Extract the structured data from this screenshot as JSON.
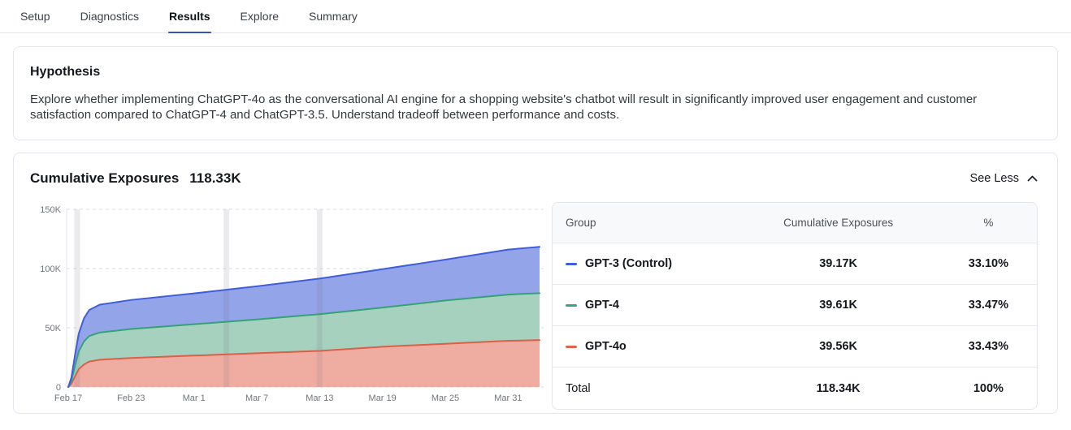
{
  "nav": {
    "tabs": [
      {
        "label": "Setup",
        "active": false
      },
      {
        "label": "Diagnostics",
        "active": false
      },
      {
        "label": "Results",
        "active": true
      },
      {
        "label": "Explore",
        "active": false
      },
      {
        "label": "Summary",
        "active": false
      }
    ]
  },
  "hypothesis": {
    "title": "Hypothesis",
    "body": "Explore whether implementing ChatGPT-4o as the conversational AI engine for a shopping website's chatbot will result in significantly improved user engagement and customer satisfaction compared to ChatGPT-4 and ChatGPT-3.5. Understand tradeoff between performance and costs."
  },
  "exposures": {
    "title": "Cumulative Exposures",
    "total_value": "118.33K",
    "see_less_label": "See Less",
    "table": {
      "columns": [
        "Group",
        "Cumulative Exposures",
        "%"
      ],
      "rows": [
        {
          "group": "GPT-3 (Control)",
          "color": "#3e5ede",
          "exposures": "39.17K",
          "pct": "33.10%"
        },
        {
          "group": "GPT-4",
          "color": "#3ba57e",
          "exposures": "39.61K",
          "pct": "33.47%"
        },
        {
          "group": "GPT-4o",
          "color": "#df6450",
          "exposures": "39.56K",
          "pct": "33.43%"
        }
      ],
      "total": {
        "label": "Total",
        "exposures": "118.34K",
        "pct": "100%"
      }
    }
  },
  "chart_data": {
    "type": "area",
    "stacked": true,
    "title": "Cumulative Exposures",
    "legend": "table-right",
    "grid": "dashed-horizontal",
    "x_unit": "days since Feb 17",
    "x_domain": [
      0,
      45
    ],
    "y_domain": [
      0,
      150
    ],
    "y_unit": "thousands of exposures",
    "x": [
      0,
      0.3,
      0.7,
      1,
      1.5,
      2,
      3,
      6,
      12,
      18,
      24,
      30,
      36,
      42,
      43.3,
      45
    ],
    "series": [
      {
        "name": "GPT-4o",
        "color_line": "#dc5f49",
        "color_fill": "#efaca1",
        "cumulative": [
          0,
          2.7,
          10,
          15,
          19,
          21.5,
          23,
          24.5,
          26.5,
          28.5,
          30.5,
          34,
          36.5,
          39,
          39.2,
          39.6
        ]
      },
      {
        "name": "GPT-4",
        "color_line": "#35a275",
        "color_fill": "#a6d1be",
        "cumulative": [
          0,
          5.3,
          20,
          30,
          38.5,
          43,
          46,
          49,
          53,
          57,
          61.5,
          67,
          73,
          78,
          78.6,
          79.2
        ]
      },
      {
        "name": "GPT-3 (Control)",
        "color_line": "#3e5ede",
        "color_fill": "#93a5e8",
        "cumulative": [
          0,
          8,
          30,
          45,
          58,
          65,
          69.5,
          73.5,
          79,
          85,
          91.5,
          99.5,
          107.5,
          116,
          117,
          118.3
        ]
      }
    ],
    "xticks": [
      {
        "x": 0,
        "label": "Feb 17"
      },
      {
        "x": 6,
        "label": "Feb 23"
      },
      {
        "x": 12,
        "label": "Mar 1"
      },
      {
        "x": 18,
        "label": "Mar 7"
      },
      {
        "x": 24,
        "label": "Mar 13"
      },
      {
        "x": 30,
        "label": "Mar 19"
      },
      {
        "x": 36,
        "label": "Mar 25"
      },
      {
        "x": 42,
        "label": "Mar 31"
      }
    ],
    "yticks": [
      {
        "v": 0,
        "label": "0"
      },
      {
        "v": 50,
        "label": "50K"
      },
      {
        "v": 100,
        "label": "100K"
      },
      {
        "v": 150,
        "label": "150K"
      }
    ],
    "event_band_days": [
      0.85,
      15.1,
      24
    ]
  }
}
